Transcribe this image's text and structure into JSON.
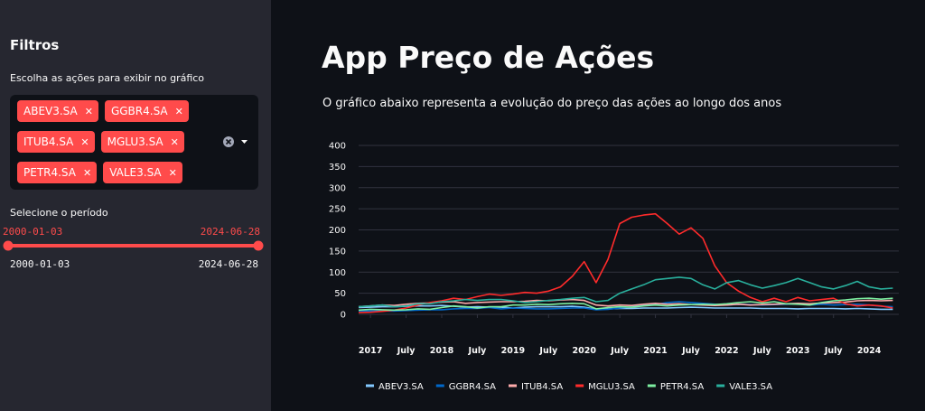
{
  "sidebar": {
    "title": "Filtros",
    "multiselect": {
      "label": "Escolha as ações para exibir no gráfico",
      "selected": [
        "ABEV3.SA",
        "GGBR4.SA",
        "ITUB4.SA",
        "MGLU3.SA",
        "PETR4.SA",
        "VALE3.SA"
      ]
    },
    "slider": {
      "label": "Selecione o período",
      "values": [
        "2000-01-03",
        "2024-06-28"
      ],
      "range": [
        "2000-01-03",
        "2024-06-28"
      ]
    }
  },
  "main": {
    "title": "App Preço de Ações",
    "description": "O gráfico abaixo representa a evolução do preço das ações ao longo dos anos"
  },
  "chart_data": {
    "type": "line",
    "x": [
      "2016-11",
      "2017-01",
      "2017-03",
      "2017-05",
      "2017-07",
      "2017-09",
      "2017-11",
      "2018-01",
      "2018-03",
      "2018-05",
      "2018-07",
      "2018-09",
      "2018-11",
      "2019-01",
      "2019-03",
      "2019-05",
      "2019-07",
      "2019-09",
      "2019-11",
      "2020-01",
      "2020-03",
      "2020-05",
      "2020-07",
      "2020-09",
      "2020-11",
      "2021-01",
      "2021-03",
      "2021-05",
      "2021-07",
      "2021-09",
      "2021-11",
      "2022-01",
      "2022-03",
      "2022-05",
      "2022-07",
      "2022-09",
      "2022-11",
      "2023-01",
      "2023-03",
      "2023-05",
      "2023-07",
      "2023-09",
      "2023-11",
      "2024-01",
      "2024-03",
      "2024-05"
    ],
    "xlim": [
      "2016-11",
      "2024-06"
    ],
    "xticks": [
      {
        "value": "2017-01",
        "label": "2017"
      },
      {
        "value": "2017-07",
        "label": "July"
      },
      {
        "value": "2018-01",
        "label": "2018"
      },
      {
        "value": "2018-07",
        "label": "July"
      },
      {
        "value": "2019-01",
        "label": "2019"
      },
      {
        "value": "2019-07",
        "label": "July"
      },
      {
        "value": "2020-01",
        "label": "2020"
      },
      {
        "value": "2020-07",
        "label": "July"
      },
      {
        "value": "2021-01",
        "label": "2021"
      },
      {
        "value": "2021-07",
        "label": "July"
      },
      {
        "value": "2022-01",
        "label": "2022"
      },
      {
        "value": "2022-07",
        "label": "July"
      },
      {
        "value": "2023-01",
        "label": "2023"
      },
      {
        "value": "2023-07",
        "label": "July"
      },
      {
        "value": "2024-01",
        "label": "2024"
      }
    ],
    "ylim": [
      0,
      400
    ],
    "yticks": [
      0,
      50,
      100,
      150,
      200,
      250,
      300,
      350,
      400
    ],
    "grid": true,
    "legend": "bottom",
    "series": [
      {
        "name": "ABEV3.SA",
        "color": "#83c9ff",
        "values": [
          16,
          17,
          18,
          18,
          19,
          20,
          20,
          21,
          19,
          17,
          18,
          17,
          17,
          15,
          17,
          18,
          18,
          18,
          19,
          17,
          12,
          13,
          14,
          14,
          15,
          15,
          15,
          16,
          17,
          16,
          15,
          15,
          15,
          15,
          14,
          14,
          14,
          13,
          14,
          14,
          14,
          13,
          14,
          13,
          12,
          12
        ]
      },
      {
        "name": "GGBR4.SA",
        "color": "#0068c9",
        "values": [
          8,
          8,
          8,
          8,
          9,
          10,
          11,
          11,
          13,
          14,
          14,
          16,
          13,
          15,
          14,
          13,
          13,
          14,
          15,
          15,
          11,
          12,
          15,
          18,
          22,
          23,
          28,
          30,
          28,
          26,
          24,
          22,
          24,
          23,
          22,
          23,
          24,
          25,
          22,
          24,
          22,
          23,
          24,
          22,
          19,
          18
        ]
      },
      {
        "name": "ITUB4.SA",
        "color": "#ffabab",
        "values": [
          18,
          20,
          22,
          21,
          24,
          26,
          27,
          29,
          30,
          26,
          28,
          29,
          30,
          30,
          31,
          33,
          32,
          34,
          35,
          33,
          22,
          20,
          22,
          21,
          24,
          26,
          24,
          25,
          23,
          22,
          21,
          22,
          24,
          22,
          23,
          24,
          25,
          26,
          25,
          27,
          28,
          29,
          32,
          33,
          32,
          33
        ]
      },
      {
        "name": "MGLU3.SA",
        "color": "#ff2b2b",
        "values": [
          4,
          5,
          7,
          10,
          15,
          22,
          28,
          32,
          38,
          35,
          42,
          48,
          45,
          48,
          52,
          50,
          55,
          65,
          90,
          125,
          75,
          130,
          215,
          230,
          235,
          238,
          215,
          190,
          205,
          180,
          115,
          75,
          55,
          40,
          30,
          38,
          30,
          40,
          32,
          35,
          38,
          25,
          20,
          22,
          20,
          15
        ]
      },
      {
        "name": "PETR4.SA",
        "color": "#7defa1",
        "values": [
          10,
          12,
          11,
          10,
          11,
          13,
          12,
          16,
          20,
          18,
          15,
          18,
          18,
          22,
          22,
          24,
          23,
          25,
          26,
          25,
          13,
          16,
          18,
          17,
          20,
          22,
          20,
          22,
          23,
          24,
          23,
          25,
          28,
          30,
          27,
          30,
          25,
          24,
          22,
          28,
          32,
          34,
          37,
          38,
          36,
          38
        ]
      },
      {
        "name": "VALE3.SA",
        "color": "#29b09d",
        "values": [
          18,
          20,
          22,
          18,
          20,
          25,
          25,
          30,
          32,
          35,
          33,
          35,
          35,
          32,
          28,
          30,
          33,
          35,
          38,
          40,
          30,
          33,
          50,
          60,
          70,
          82,
          85,
          88,
          85,
          70,
          60,
          75,
          80,
          70,
          62,
          68,
          75,
          85,
          75,
          65,
          60,
          68,
          78,
          65,
          60,
          62
        ]
      }
    ]
  }
}
